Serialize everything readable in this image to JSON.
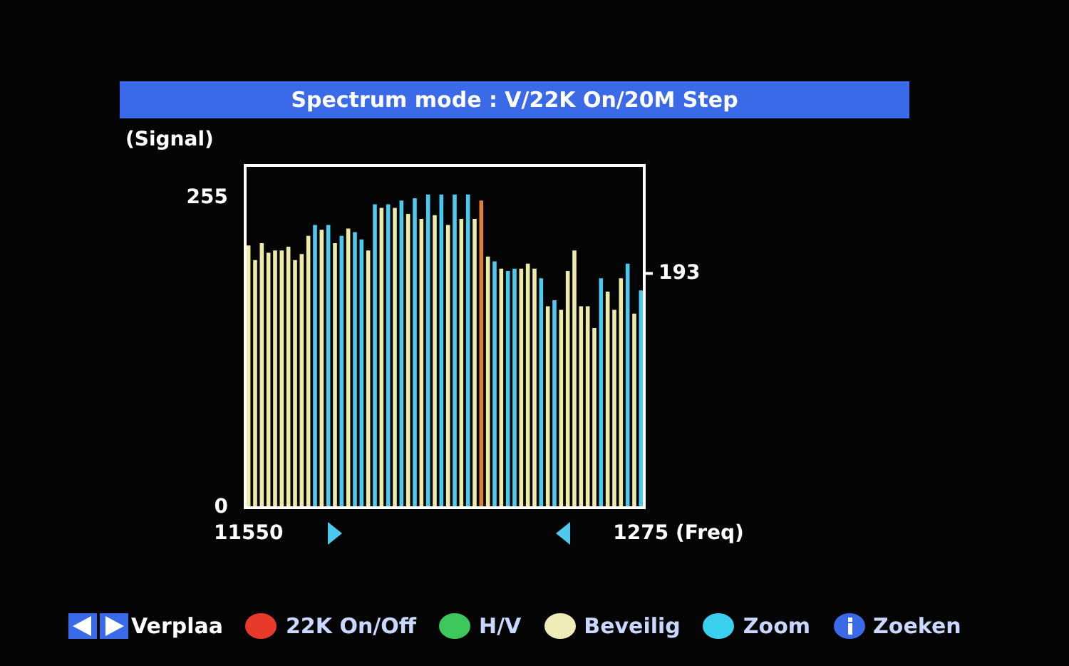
{
  "chart_data": {
    "type": "bar",
    "title": "Spectrum mode : V/22K On/20M Step",
    "ylabel": "(Signal)",
    "xlabel": "(Freq)",
    "categories": [
      "11550",
      null,
      null,
      null,
      null,
      null,
      null,
      null,
      null,
      null,
      null,
      null,
      null,
      null,
      null,
      null,
      null,
      null,
      null,
      null,
      null,
      null,
      null,
      null,
      null,
      null,
      null,
      null,
      null,
      null,
      null,
      null,
      null,
      null,
      null,
      null,
      null,
      null,
      null,
      null,
      null,
      null,
      null,
      null,
      null,
      null,
      null,
      null,
      null,
      null,
      null,
      null,
      null,
      null,
      null,
      null,
      null,
      null,
      null,
      "1275"
    ],
    "values": [
      216,
      204,
      218,
      210,
      212,
      212,
      215,
      204,
      209,
      224,
      233,
      229,
      233,
      218,
      224,
      230,
      227,
      221,
      212,
      250,
      247,
      250,
      247,
      253,
      242,
      255,
      238,
      258,
      241,
      258,
      233,
      258,
      238,
      258,
      238,
      253,
      207,
      203,
      197,
      195,
      197,
      197,
      201,
      197,
      189,
      166,
      171,
      163,
      195,
      212,
      166,
      166,
      148,
      189,
      178,
      163,
      189,
      201,
      160,
      179
    ],
    "colors": [
      "#eeeaa8",
      "#eeeaa8",
      "#eeeaa8",
      "#eeeaa8",
      "#eeeaa8",
      "#eeeaa8",
      "#eeeaa8",
      "#eeeaa8",
      "#eeeaa8",
      "#eeeaa8",
      "#4fc8ee",
      "#eeeaa8",
      "#4fc8ee",
      "#eeeaa8",
      "#4fc8ee",
      "#eeeaa8",
      "#4fc8ee",
      "#4fc8ee",
      "#eeeaa8",
      "#4fc8ee",
      "#eeeaa8",
      "#4fc8ee",
      "#eeeaa8",
      "#4fc8ee",
      "#eeeaa8",
      "#4fc8ee",
      "#eeeaa8",
      "#4fc8ee",
      "#eeeaa8",
      "#4fc8ee",
      "#eeeaa8",
      "#4fc8ee",
      "#eeeaa8",
      "#4fc8ee",
      "#eeeaa8",
      "#e08040",
      "#eeeaa8",
      "#4fc8ee",
      "#eeeaa8",
      "#4fc8ee",
      "#4fc8ee",
      "#eeeaa8",
      "#eeeaa8",
      "#eeeaa8",
      "#4fc8ee",
      "#eeeaa8",
      "#4fc8ee",
      "#eeeaa8",
      "#eeeaa8",
      "#eeeaa8",
      "#eeeaa8",
      "#eeeaa8",
      "#eeeaa8",
      "#4fc8ee",
      "#eeeaa8",
      "#eeeaa8",
      "#eeeaa8",
      "#4fc8ee",
      "#eeeaa8",
      "#4fc8ee"
    ],
    "ylim": [
      0,
      282
    ],
    "yticks": [
      0,
      255
    ],
    "ref_lines": [
      {
        "axis": "y",
        "value": 193,
        "label": "193"
      }
    ],
    "annotations": [
      "Verplaa",
      "22K On/Off",
      "H/V",
      "Beveilig",
      "Zoom",
      "Zoeken"
    ]
  }
}
